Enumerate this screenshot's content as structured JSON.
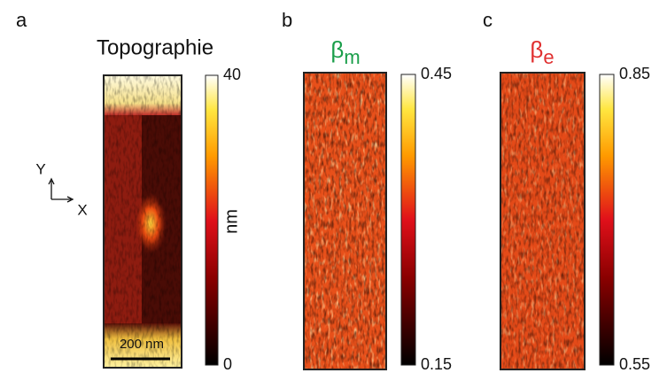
{
  "panels": [
    {
      "letter": "a",
      "title": "Topographie",
      "colorbar": {
        "lim": [
          0,
          40
        ],
        "ticks": [
          0,
          40
        ],
        "label": "nm"
      },
      "scale_bar": "200 nm",
      "axes": {
        "y": "Y",
        "x": "X"
      }
    },
    {
      "letter": "b",
      "title": {
        "symbol": "β",
        "subscript": "m"
      },
      "colorbar": {
        "lim": [
          0.15,
          0.45
        ],
        "ticks": [
          0.15,
          0.45
        ]
      }
    },
    {
      "letter": "c",
      "title": {
        "symbol": "β",
        "subscript": "e"
      },
      "colorbar": {
        "lim": [
          0.55,
          0.85
        ],
        "ticks": [
          0.55,
          0.85
        ]
      }
    }
  ]
}
